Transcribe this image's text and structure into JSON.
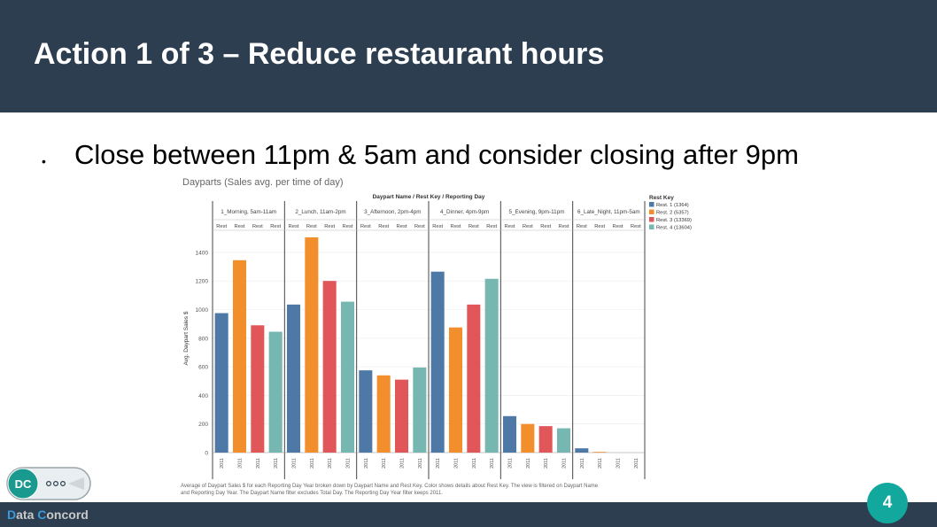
{
  "slide": {
    "title": "Action 1 of 3 – Reduce restaurant hours",
    "bullet_marker": "•",
    "bullet": "Close between 11pm & 5am and consider closing after 9pm",
    "page_number": "4",
    "brand_first": "D",
    "brand_mid": "ata ",
    "brand_second": "C",
    "brand_end": "oncord",
    "logo_text": "DC"
  },
  "chart_data": {
    "type": "bar",
    "title": "Dayparts (Sales avg. per time of day)",
    "column_header": "Daypart Name / Rest Key / Reporting Day",
    "categories": [
      "1_Morning, 5am-11am",
      "2_Lunch, 11am-2pm",
      "3_Afternoon, 2pm-4pm",
      "4_Dinner, 4pm-9pm",
      "5_Evening, 9pm-11pm",
      "6_Late_Night, 11pm-5am"
    ],
    "sub_label": "Rest",
    "x_tick_label": "2011",
    "ylabel": "Avg. Daypart Sales $",
    "ylim": [
      0,
      1500
    ],
    "yticks": [
      0,
      200,
      400,
      600,
      800,
      1000,
      1200,
      1400
    ],
    "legend_title": "Rest Key",
    "legend_position": "right",
    "series": [
      {
        "name": "Rest. 1 (1364)",
        "color": "#4e79a7",
        "values": [
          975,
          1035,
          575,
          1265,
          255,
          30
        ]
      },
      {
        "name": "Rest. 2 (5357)",
        "color": "#f28e2b",
        "values": [
          1345,
          1505,
          540,
          875,
          200,
          5
        ]
      },
      {
        "name": "Rest. 3 (13369)",
        "color": "#e15759",
        "values": [
          890,
          1200,
          510,
          1035,
          185,
          0
        ]
      },
      {
        "name": "Rest. 4 (13604)",
        "color": "#76b7b2",
        "values": [
          845,
          1055,
          595,
          1215,
          170,
          0
        ]
      }
    ],
    "caption_line1": "Average of Daypart Sales $ for each Reporting Day Year broken down by Daypart Name and Rest Key.  Color shows details about Rest Key. The view is filtered on Daypart Name",
    "caption_line2": "and Reporting Day Year. The Daypart Name filter excludes Total Day. The Reporting Day Year filter keeps 2011."
  }
}
